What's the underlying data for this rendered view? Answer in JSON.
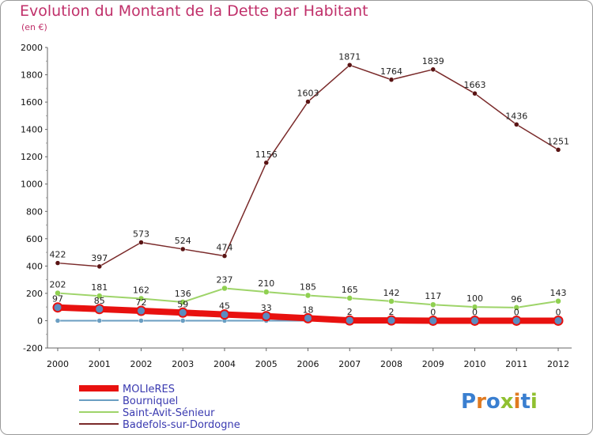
{
  "title": "Evolution du Montant de la Dette par Habitant",
  "subtitle": "(en €)",
  "logo_text": "Proxiti",
  "chart_data": {
    "type": "line",
    "title": "Evolution du Montant de la Dette par Habitant",
    "subtitle": "(en €)",
    "xlabel": "",
    "ylabel": "",
    "x": [
      "2000",
      "2001",
      "2002",
      "2003",
      "2004",
      "2005",
      "2006",
      "2007",
      "2008",
      "2009",
      "2010",
      "2011",
      "2012"
    ],
    "ylim": [
      -200,
      2000
    ],
    "yticks": [
      -200,
      0,
      200,
      400,
      600,
      800,
      1000,
      1200,
      1400,
      1600,
      1800,
      2000
    ],
    "grid": false,
    "legend_position": "bottom-left",
    "series": [
      {
        "name": "MOLIeRES",
        "color": "#e8110f",
        "values": [
          97,
          85,
          72,
          59,
          45,
          33,
          18,
          2,
          2,
          0,
          0,
          0,
          0
        ]
      },
      {
        "name": "Bourniquel",
        "color": "#6a9ec2",
        "values": [
          0,
          0,
          0,
          0,
          0,
          0,
          0,
          0,
          0,
          0,
          0,
          0,
          0
        ]
      },
      {
        "name": "Saint-Avit-Sénieur",
        "color": "#9ed469",
        "values": [
          202,
          181,
          162,
          136,
          237,
          210,
          185,
          165,
          142,
          117,
          100,
          96,
          143
        ]
      },
      {
        "name": "Badefols-sur-Dordogne",
        "color": "#7a2a2a",
        "values": [
          422,
          397,
          573,
          524,
          474,
          1156,
          1603,
          1871,
          1764,
          1839,
          1663,
          1436,
          1251
        ]
      }
    ]
  }
}
